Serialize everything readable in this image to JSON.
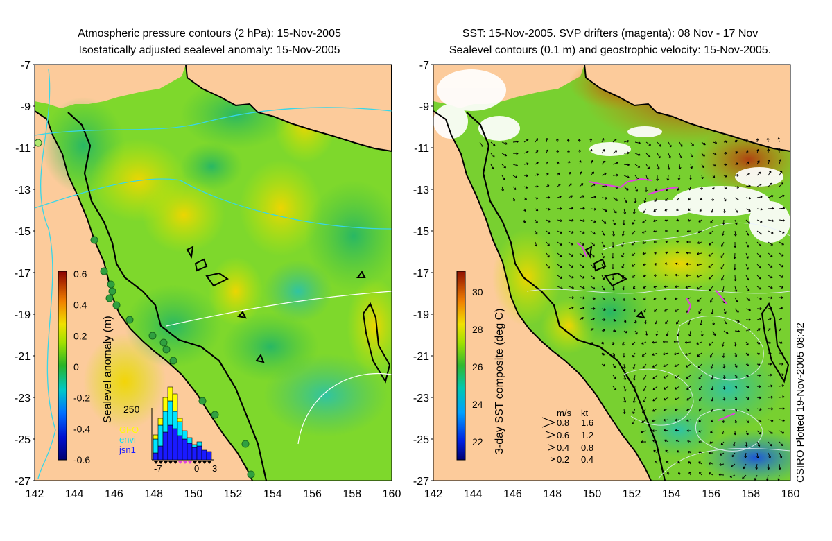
{
  "left_panel": {
    "title_line1": "Atmospheric pressure contours (2 hPa): 15-Nov-2005",
    "title_line2": "Isostatically adjusted sealevel anomaly: 15-Nov-2005",
    "colorbar": {
      "label": "Sealevel anomaly (m)",
      "ticks": [
        "0.6",
        "0.4",
        "0.2",
        "0",
        "-0.2",
        "-0.4",
        "-0.6"
      ],
      "min": -0.6,
      "max": 0.6
    },
    "histogram": {
      "ymax_label": "250",
      "x_ticks": [
        "-7",
        "0",
        "3"
      ],
      "legend": [
        {
          "name": "GFO",
          "color": "#ffff00"
        },
        {
          "name": "envi",
          "color": "#00e5ff"
        },
        {
          "name": "jsn1",
          "color": "#1a1aff"
        }
      ]
    }
  },
  "right_panel": {
    "title_line1": "SST: 15-Nov-2005. SVP drifters (magenta): 08 Nov - 17 Nov",
    "title_line2": "Sealevel contours (0.1 m) and geostrophic velocity: 15-Nov-2005.",
    "colorbar": {
      "label": "3-day SST composite (deg C)",
      "ticks": [
        "30",
        "28",
        "26",
        "24",
        "22"
      ],
      "min": 21,
      "max": 31
    },
    "velocity_key": {
      "header_ms": "m/s",
      "header_kt": "kt",
      "rows": [
        {
          "ms": "0.8",
          "kt": "1.6"
        },
        {
          "ms": "0.6",
          "kt": "1.2"
        },
        {
          "ms": "0.4",
          "kt": "0.8"
        },
        {
          "ms": "0.2",
          "kt": "0.4"
        }
      ]
    }
  },
  "axes": {
    "lat_ticks": [
      "-7",
      "-9",
      "-11",
      "-13",
      "-15",
      "-17",
      "-19",
      "-21",
      "-23",
      "-25",
      "-27"
    ],
    "lon_ticks": [
      "142",
      "144",
      "146",
      "148",
      "150",
      "152",
      "154",
      "156",
      "158",
      "160"
    ]
  },
  "credit": "CSIRO Plotted 19-Nov-2005 08:42",
  "colors": {
    "land": "#fccb9b",
    "ocean_mid": "#6fd23a",
    "coast": "#000000",
    "drifter": "#e040e0",
    "pressure_contour": "#38d6e8"
  }
}
